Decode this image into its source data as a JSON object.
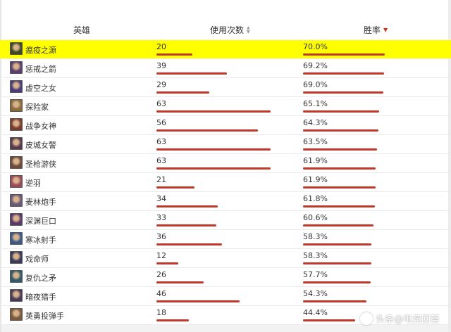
{
  "header": {
    "hero": "英雄",
    "usage": "使用次数",
    "winrate": "胜率"
  },
  "colors": {
    "bar": "#c0392b",
    "highlight": "#ffff00"
  },
  "usage_max": 63,
  "winrate_max": 70.0,
  "rows": [
    {
      "name": "瘟疫之源",
      "usage": "20",
      "winrate": "70.0%",
      "avatar_color": "#3e4a1f",
      "icon": "hero-avatar-icon",
      "highlight": true
    },
    {
      "name": "惩戒之箭",
      "usage": "39",
      "winrate": "69.2%",
      "avatar_color": "#5b3f6e",
      "icon": "hero-avatar-icon"
    },
    {
      "name": "虚空之女",
      "usage": "29",
      "winrate": "69.0%",
      "avatar_color": "#4a3c7a",
      "icon": "hero-avatar-icon"
    },
    {
      "name": "探险家",
      "usage": "63",
      "winrate": "65.1%",
      "avatar_color": "#8a6a3a",
      "icon": "hero-avatar-icon"
    },
    {
      "name": "战争女神",
      "usage": "56",
      "winrate": "64.3%",
      "avatar_color": "#7a3a2e",
      "icon": "hero-avatar-icon"
    },
    {
      "name": "皮城女警",
      "usage": "63",
      "winrate": "63.5%",
      "avatar_color": "#5a3a4e",
      "icon": "hero-avatar-icon"
    },
    {
      "name": "圣枪游侠",
      "usage": "63",
      "winrate": "61.9%",
      "avatar_color": "#6e4a3a",
      "icon": "hero-avatar-icon"
    },
    {
      "name": "逆羽",
      "usage": "21",
      "winrate": "61.9%",
      "avatar_color": "#9a4a5a",
      "icon": "hero-avatar-icon"
    },
    {
      "name": "麦林炮手",
      "usage": "34",
      "winrate": "61.8%",
      "avatar_color": "#6a5a7a",
      "icon": "hero-avatar-icon"
    },
    {
      "name": "深渊巨口",
      "usage": "33",
      "winrate": "60.6%",
      "avatar_color": "#5a3a6a",
      "icon": "hero-avatar-icon"
    },
    {
      "name": "寒冰射手",
      "usage": "36",
      "winrate": "58.3%",
      "avatar_color": "#3a5a8a",
      "icon": "hero-avatar-icon"
    },
    {
      "name": "戏命师",
      "usage": "12",
      "winrate": "58.3%",
      "avatar_color": "#3a3a5a",
      "icon": "hero-avatar-icon"
    },
    {
      "name": "复仇之矛",
      "usage": "26",
      "winrate": "57.7%",
      "avatar_color": "#2e5a6a",
      "icon": "hero-avatar-icon"
    },
    {
      "name": "暗夜猎手",
      "usage": "46",
      "winrate": "54.3%",
      "avatar_color": "#4a3a5a",
      "icon": "hero-avatar-icon"
    },
    {
      "name": "英勇投弹手",
      "usage": "18",
      "winrate": "44.4%",
      "avatar_color": "#7a5a3a",
      "icon": "hero-avatar-icon"
    }
  ],
  "watermark": {
    "text": "头条@电竞回答",
    "icon": "toutiao-logo-icon"
  }
}
